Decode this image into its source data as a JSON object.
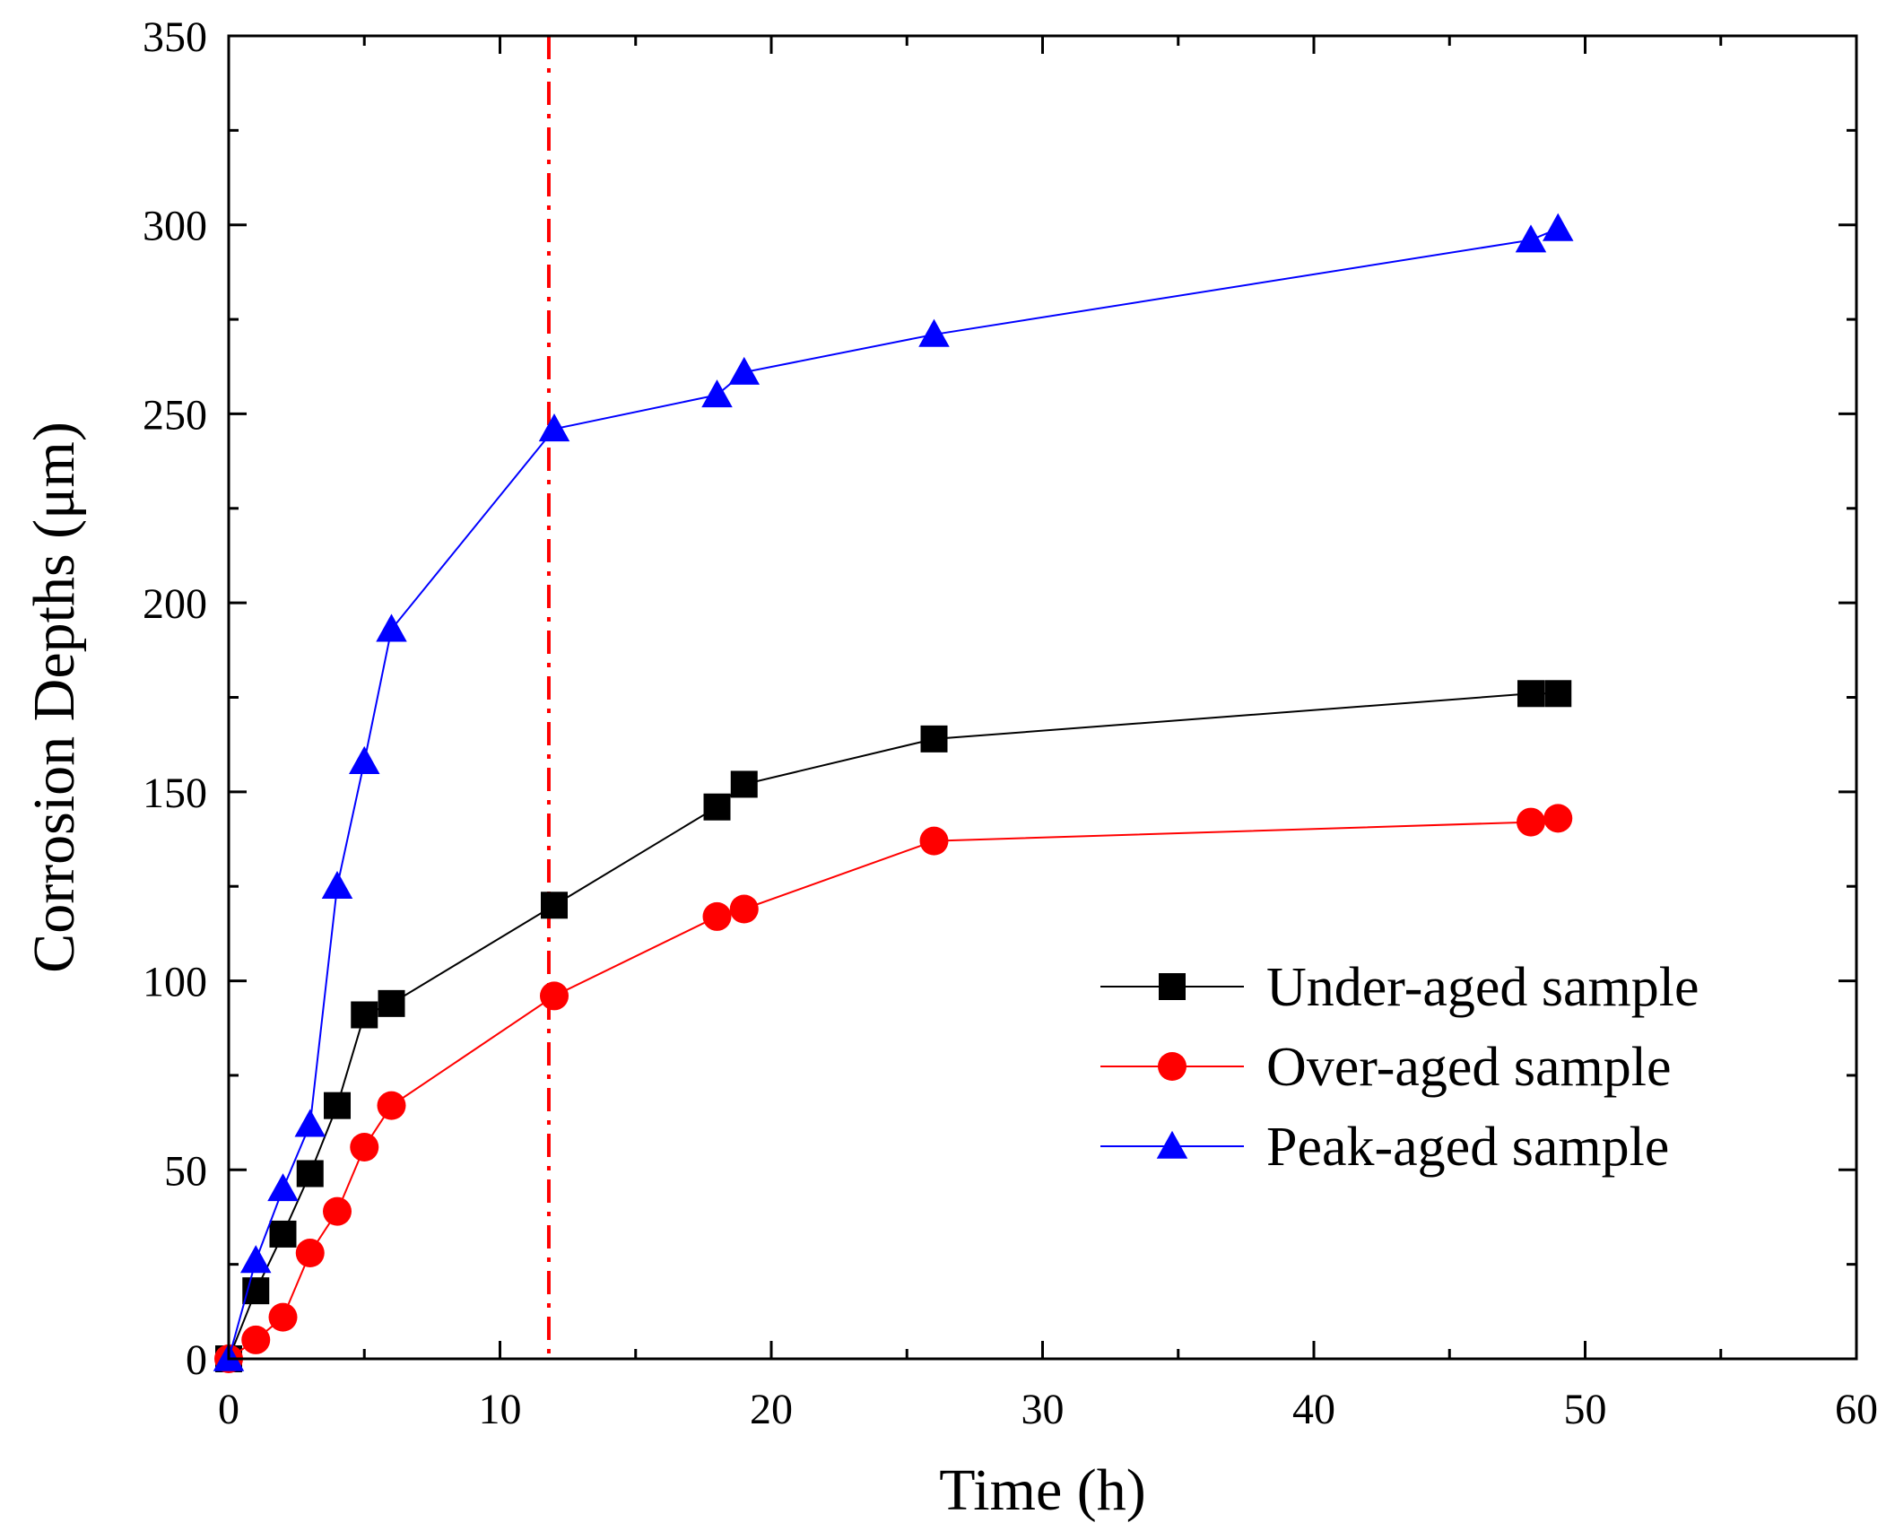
{
  "chart_data": {
    "type": "line",
    "title": "",
    "xlabel": "Time (h)",
    "ylabel": "Corrosion Depths (μm)",
    "xlim": [
      0,
      60
    ],
    "ylim": [
      0,
      350
    ],
    "xticks": [
      0,
      10,
      20,
      30,
      40,
      50,
      60
    ],
    "yticks": [
      0,
      50,
      100,
      150,
      200,
      250,
      300,
      350
    ],
    "grid": false,
    "legend_position": "lower-right",
    "reference_line": {
      "x": 11.8,
      "color": "#ff0000",
      "style": "dash-dot"
    },
    "series": [
      {
        "name": "Under-aged sample",
        "color": "#000000",
        "marker": "square",
        "x": [
          0,
          1,
          2,
          3,
          4,
          5,
          6,
          12,
          18,
          19,
          26,
          48,
          49
        ],
        "y": [
          0,
          18,
          33,
          49,
          67,
          91,
          94,
          120,
          146,
          152,
          164,
          176,
          176
        ]
      },
      {
        "name": "Over-aged sample",
        "color": "#ff0000",
        "marker": "circle",
        "x": [
          0,
          1,
          2,
          3,
          4,
          5,
          6,
          12,
          18,
          19,
          26,
          48,
          49
        ],
        "y": [
          0,
          5,
          11,
          28,
          39,
          56,
          67,
          96,
          117,
          119,
          137,
          142,
          143
        ]
      },
      {
        "name": "Peak-aged sample",
        "color": "#0000ff",
        "marker": "triangle",
        "x": [
          0,
          1,
          2,
          3,
          4,
          5,
          6,
          12,
          18,
          19,
          26,
          48,
          49
        ],
        "y": [
          0,
          26,
          45,
          62,
          125,
          158,
          193,
          246,
          255,
          261,
          271,
          296,
          299
        ]
      }
    ]
  }
}
